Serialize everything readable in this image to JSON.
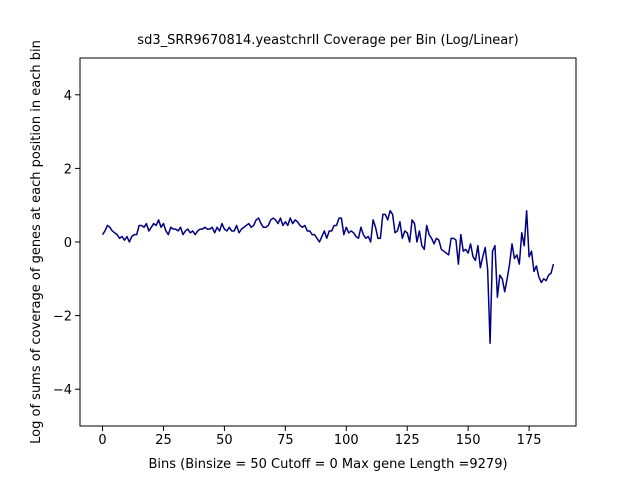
{
  "chart_data": {
    "type": "line",
    "title": "sd3_SRR9670814.yeastchrII Coverage per Bin (Log/Linear)",
    "xlabel": "Bins  (Binsize = 50 Cutoff = 0 Max gene Length =9279)",
    "ylabel": "Log of sums of coverage of genes at each position in each bin",
    "x": [
      0,
      1,
      2,
      3,
      4,
      5,
      6,
      7,
      8,
      9,
      10,
      11,
      12,
      13,
      14,
      15,
      16,
      17,
      18,
      19,
      20,
      21,
      22,
      23,
      24,
      25,
      26,
      27,
      28,
      29,
      30,
      31,
      32,
      33,
      34,
      35,
      36,
      37,
      38,
      39,
      40,
      41,
      42,
      43,
      44,
      45,
      46,
      47,
      48,
      49,
      50,
      51,
      52,
      53,
      54,
      55,
      56,
      57,
      58,
      59,
      60,
      61,
      62,
      63,
      64,
      65,
      66,
      67,
      68,
      69,
      70,
      71,
      72,
      73,
      74,
      75,
      76,
      77,
      78,
      79,
      80,
      81,
      82,
      83,
      84,
      85,
      86,
      87,
      88,
      89,
      90,
      91,
      92,
      93,
      94,
      95,
      96,
      97,
      98,
      99,
      100,
      101,
      102,
      103,
      104,
      105,
      106,
      107,
      108,
      109,
      110,
      111,
      112,
      113,
      114,
      115,
      116,
      117,
      118,
      119,
      120,
      121,
      122,
      123,
      124,
      125,
      126,
      127,
      128,
      129,
      130,
      131,
      132,
      133,
      134,
      135,
      136,
      137,
      138,
      139,
      140,
      141,
      142,
      143,
      144,
      145,
      146,
      147,
      148,
      149,
      150,
      151,
      152,
      153,
      154,
      155,
      156,
      157,
      158,
      159,
      160,
      161,
      162,
      163,
      164,
      165,
      166,
      167,
      168,
      169,
      170,
      171,
      172,
      173,
      174,
      175,
      176,
      177,
      178,
      179,
      180,
      181,
      182,
      183,
      184,
      185
    ],
    "series": [
      {
        "color": "#000080",
        "values": [
          0.2,
          0.3,
          0.45,
          0.4,
          0.3,
          0.25,
          0.2,
          0.1,
          0.15,
          0.05,
          0.15,
          0.0,
          0.15,
          0.2,
          0.2,
          0.45,
          0.45,
          0.4,
          0.5,
          0.3,
          0.4,
          0.5,
          0.45,
          0.6,
          0.4,
          0.5,
          0.3,
          0.2,
          0.4,
          0.35,
          0.35,
          0.3,
          0.4,
          0.2,
          0.3,
          0.35,
          0.25,
          0.3,
          0.2,
          0.3,
          0.35,
          0.35,
          0.4,
          0.35,
          0.35,
          0.4,
          0.25,
          0.4,
          0.3,
          0.5,
          0.35,
          0.3,
          0.4,
          0.3,
          0.3,
          0.45,
          0.25,
          0.35,
          0.4,
          0.45,
          0.5,
          0.4,
          0.45,
          0.6,
          0.65,
          0.5,
          0.4,
          0.4,
          0.45,
          0.6,
          0.65,
          0.6,
          0.5,
          0.65,
          0.45,
          0.55,
          0.45,
          0.65,
          0.5,
          0.6,
          0.55,
          0.45,
          0.4,
          0.45,
          0.3,
          0.3,
          0.2,
          0.2,
          0.1,
          0.0,
          0.15,
          0.3,
          0.1,
          0.3,
          0.3,
          0.45,
          0.45,
          0.65,
          0.65,
          0.2,
          0.4,
          0.25,
          0.3,
          0.25,
          0.15,
          0.1,
          0.4,
          0.2,
          0.1,
          0.15,
          0.0,
          0.6,
          0.4,
          0.1,
          0.1,
          0.75,
          0.75,
          0.6,
          0.85,
          0.75,
          0.25,
          0.3,
          0.55,
          0.1,
          0.3,
          0.25,
          0.0,
          0.6,
          0.5,
          0.0,
          0.3,
          -0.1,
          -0.2,
          0.45,
          0.2,
          0.1,
          -0.05,
          0.1,
          0.05,
          -0.2,
          -0.25,
          -0.3,
          -0.35,
          0.1,
          0.1,
          0.05,
          -0.6,
          0.2,
          -0.25,
          -0.2,
          -0.3,
          -0.05,
          -0.4,
          -0.5,
          -0.1,
          -0.7,
          -0.4,
          -0.15,
          -0.75,
          -2.75,
          -0.25,
          -0.1,
          -1.5,
          -0.9,
          -1.0,
          -1.35,
          -1.0,
          -0.6,
          -0.05,
          -0.45,
          -0.35,
          -0.6,
          0.25,
          -0.1,
          0.85,
          -0.4,
          -0.25,
          -0.8,
          -0.65,
          -0.95,
          -1.1,
          -1.0,
          -1.05,
          -0.9,
          -0.85,
          -0.6
        ]
      }
    ],
    "xlim": [
      -9.25,
      194.25
    ],
    "ylim": [
      -5,
      5
    ],
    "xticks": [
      0,
      25,
      50,
      75,
      100,
      125,
      150,
      175
    ],
    "yticks": [
      {
        "value": -4,
        "label": "−4"
      },
      {
        "value": -2,
        "label": "−2"
      },
      0,
      2,
      4
    ]
  }
}
